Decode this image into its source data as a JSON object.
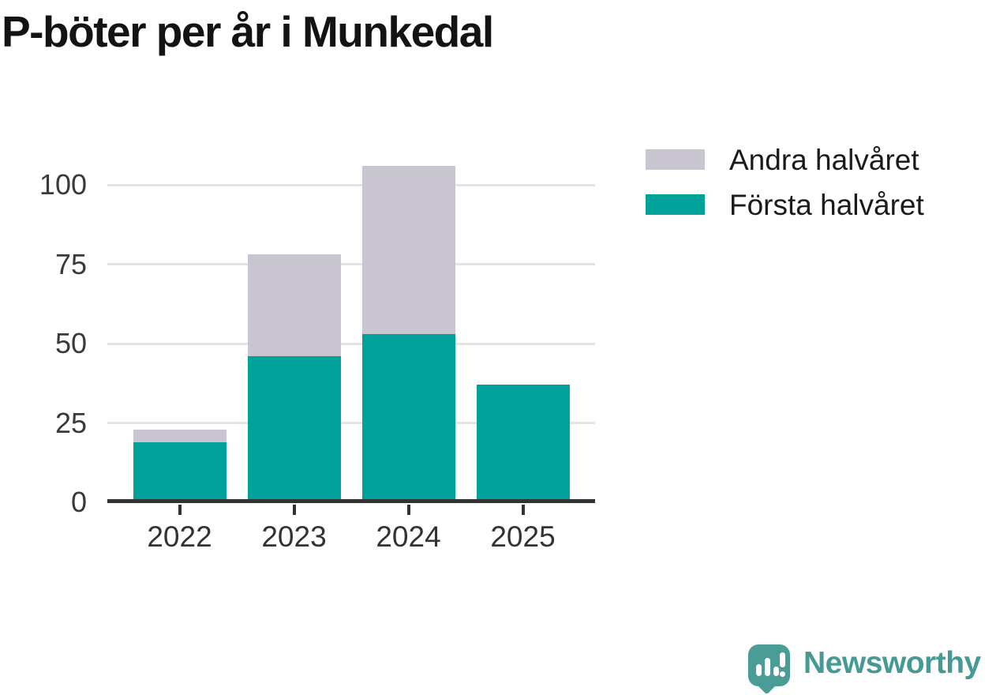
{
  "title": "P-böter per år i Munkedal",
  "legend": [
    {
      "label": "Andra halvåret",
      "color": "#c9c6d1"
    },
    {
      "label": "Första halvåret",
      "color": "#00a29a"
    }
  ],
  "chart_data": {
    "type": "bar",
    "stacked": true,
    "title": "P-böter per år i Munkedal",
    "categories": [
      "2022",
      "2023",
      "2024",
      "2025"
    ],
    "series": [
      {
        "name": "Första halvåret",
        "color": "#00a29a",
        "values": [
          19,
          46,
          53,
          37
        ]
      },
      {
        "name": "Andra halvåret",
        "color": "#c9c6d1",
        "values": [
          4,
          32,
          53,
          0
        ]
      }
    ],
    "totals": [
      23,
      78,
      106,
      37
    ],
    "xlabel": "",
    "ylabel": "",
    "yticks": [
      0,
      25,
      50,
      75,
      100
    ],
    "ylim": [
      0,
      110
    ],
    "grid": true,
    "legend_position": "top-right"
  },
  "colors": {
    "axis": "#333333",
    "gridline": "#e4e4e4",
    "tick_label": "#3a3a3a",
    "title_text": "#131313",
    "legend_text": "#1b1b1b",
    "brand_teal": "#459a94"
  },
  "branding": {
    "logo_text": "Newsworthy",
    "logo_icon": "newsworthy-speech-bubble-chart-icon"
  }
}
